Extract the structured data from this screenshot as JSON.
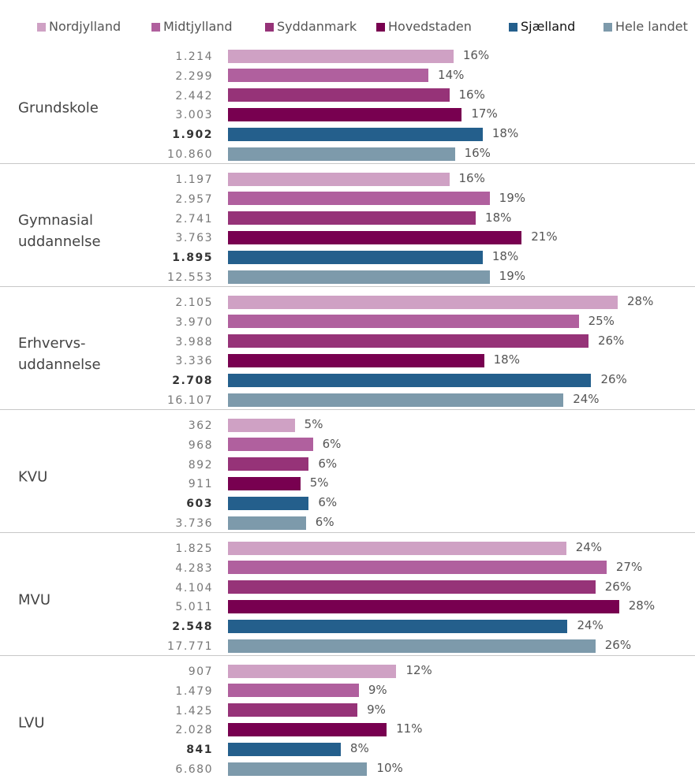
{
  "chart_data": {
    "type": "bar",
    "orientation": "horizontal",
    "categories": [
      "Grundskole",
      "Gymnasial uddannelse",
      "Erhvervs-uddannelse",
      "KVU",
      "MVU",
      "LVU"
    ],
    "xlim": [
      0,
      28
    ],
    "series": [
      {
        "name": "Nordjylland",
        "color": "#cfa1c4",
        "bold": false,
        "values": [
          16.2,
          15.9,
          28.0,
          4.8,
          24.3,
          12.1
        ],
        "value_labels": [
          "16%",
          "16%",
          "28%",
          "5%",
          "24%",
          "12%"
        ],
        "count_labels": [
          "1.214",
          "1.197",
          "2.105",
          "362",
          "1.825",
          "907"
        ]
      },
      {
        "name": "Midtjylland",
        "color": "#b0609e",
        "bold": false,
        "values": [
          14.4,
          18.8,
          25.2,
          6.1,
          27.2,
          9.4
        ],
        "value_labels": [
          "14%",
          "19%",
          "25%",
          "6%",
          "27%",
          "9%"
        ],
        "count_labels": [
          "2.299",
          "2.957",
          "3.970",
          "968",
          "4.283",
          "1.479"
        ]
      },
      {
        "name": "Syddanmark",
        "color": "#963378",
        "bold": false,
        "values": [
          15.9,
          17.8,
          25.9,
          5.8,
          26.4,
          9.3
        ],
        "value_labels": [
          "16%",
          "18%",
          "26%",
          "6%",
          "26%",
          "9%"
        ],
        "count_labels": [
          "2.442",
          "2.741",
          "3.988",
          "892",
          "4.104",
          "1.425"
        ]
      },
      {
        "name": "Hovedstaden",
        "color": "#780050",
        "bold": false,
        "values": [
          16.8,
          21.1,
          18.4,
          5.2,
          28.1,
          11.4
        ],
        "value_labels": [
          "17%",
          "21%",
          "18%",
          "5%",
          "28%",
          "11%"
        ],
        "count_labels": [
          "3.003",
          "3.763",
          "3.336",
          "911",
          "5.011",
          "2.028"
        ]
      },
      {
        "name": "Sjælland",
        "color": "#245f8c",
        "bold": true,
        "values": [
          18.3,
          18.3,
          26.1,
          5.8,
          24.4,
          8.1
        ],
        "value_labels": [
          "18%",
          "18%",
          "26%",
          "6%",
          "24%",
          "8%"
        ],
        "count_labels": [
          "1.902",
          "1.895",
          "2.708",
          "603",
          "2.548",
          "841"
        ]
      },
      {
        "name": "Hele landet",
        "color": "#7d9aab",
        "bold": false,
        "values": [
          16.3,
          18.8,
          24.1,
          5.6,
          26.4,
          10.0
        ],
        "value_labels": [
          "16%",
          "19%",
          "24%",
          "6%",
          "26%",
          "10%"
        ],
        "count_labels": [
          "10.860",
          "12.553",
          "16.107",
          "3.736",
          "17.771",
          "6.680"
        ]
      }
    ]
  }
}
